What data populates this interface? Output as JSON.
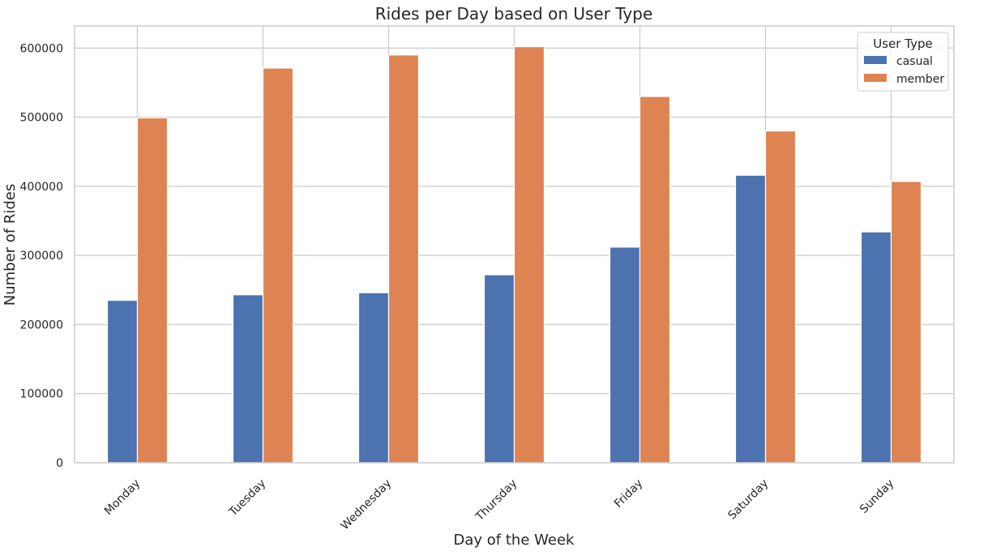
{
  "chart_data": {
    "type": "bar",
    "title": "Rides per Day based on User Type",
    "xlabel": "Day of the Week",
    "ylabel": "Number of Rides",
    "categories": [
      "Monday",
      "Tuesday",
      "Wednesday",
      "Thursday",
      "Friday",
      "Saturday",
      "Sunday"
    ],
    "series": [
      {
        "name": "casual",
        "color": "#4C72B0",
        "values": [
          235000,
          243000,
          246000,
          272000,
          312000,
          416000,
          334000
        ]
      },
      {
        "name": "member",
        "color": "#DD8452",
        "values": [
          499000,
          571000,
          590000,
          602000,
          530000,
          480000,
          407000
        ]
      }
    ],
    "ylim": [
      0,
      632000
    ],
    "yticks": [
      0,
      100000,
      200000,
      300000,
      400000,
      500000,
      600000
    ],
    "ytick_labels": [
      "0",
      "100000",
      "200000",
      "300000",
      "400000",
      "500000",
      "600000"
    ],
    "grid": true,
    "legend": {
      "title": "User Type",
      "placement": "top-right"
    }
  }
}
